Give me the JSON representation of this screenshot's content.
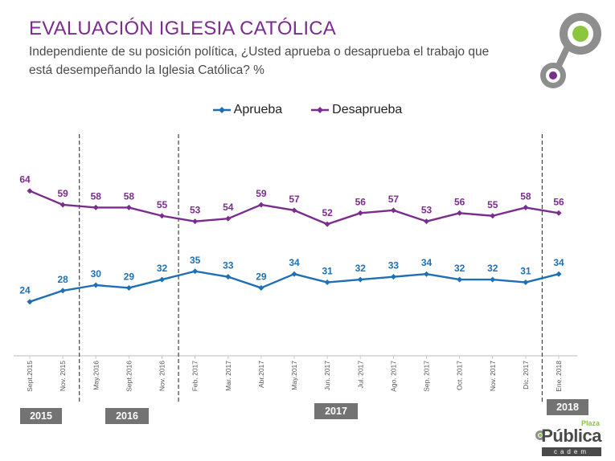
{
  "header": {
    "title": "EVALUACIÓN IGLESIA CATÓLICA",
    "subtitle": "Independiente de su posición política,  ¿Usted aprueba o desaprueba el trabajo que está desempeñando la Iglesia Católica? %"
  },
  "colors": {
    "title": "#7b2d8e",
    "aprueba": "#1f6fb5",
    "desaprueba": "#7b2d8e",
    "year_badge": "#737373",
    "logo_green": "#8cc63f",
    "logo_gray": "#8e8e8e"
  },
  "year_badges": [
    "2015",
    "2016",
    "2017",
    "2018"
  ],
  "brand": {
    "plaza": "Plaza",
    "name": "Pública",
    "sub": "cadem"
  },
  "chart_data": {
    "type": "line",
    "categories": [
      "Sept.2015",
      "Nov. 2015",
      "May.2016",
      "Sept.2016",
      "Nov. 2016",
      "Feb. 2017",
      "Mar. 2017",
      "Abr.2017",
      "May.2017",
      "Jun. 2017",
      "Jul. 2017",
      "Ago. 2017",
      "Sep. 2017",
      "Oct. 2017",
      "Nov. 2017",
      "Dic. 2017",
      "Ene. 2018"
    ],
    "series": [
      {
        "name": "Aprueba",
        "values": [
          24,
          28,
          30,
          29,
          32,
          35,
          33,
          29,
          34,
          31,
          32,
          33,
          34,
          32,
          32,
          31,
          34
        ]
      },
      {
        "name": "Desaprueba",
        "values": [
          64,
          59,
          58,
          58,
          55,
          53,
          54,
          59,
          57,
          52,
          56,
          57,
          53,
          56,
          55,
          58,
          56
        ]
      }
    ],
    "legend_position": "top-center",
    "period_dividers_after": [
      "Nov. 2015",
      "Nov. 2016",
      "Dic. 2017"
    ],
    "data_labels": true,
    "grid": false
  }
}
